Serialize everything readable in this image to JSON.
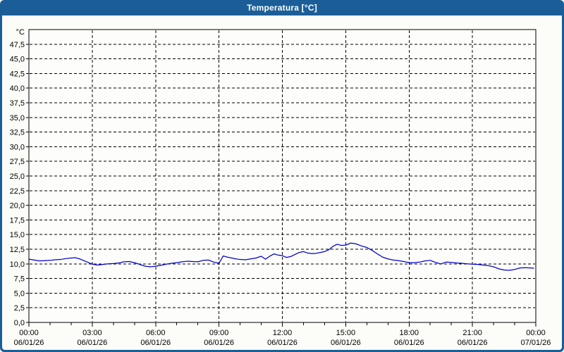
{
  "window": {
    "title": "Temperatura [°C]"
  },
  "colors": {
    "titlebar": "#1B5E97",
    "border": "#1B5E97",
    "content_bg": "#FCFCF8",
    "plot_bg": "#FDFDFB",
    "grid": "#000000",
    "axis": "#000000",
    "text": "#000000",
    "title_text": "#FFFFFF",
    "line": "#0000CC"
  },
  "chart_data": {
    "type": "line",
    "title": "Temperatura [°C]",
    "y_unit": "°C",
    "ylim": [
      0,
      50
    ],
    "xlim_hours": [
      0,
      24
    ],
    "grid": "dashed",
    "legend": "none",
    "y_ticks": [
      {
        "v": 47.5,
        "label": "47,5"
      },
      {
        "v": 45.0,
        "label": "45,0"
      },
      {
        "v": 42.5,
        "label": "42,5"
      },
      {
        "v": 40.0,
        "label": "40,0"
      },
      {
        "v": 37.5,
        "label": "37,5"
      },
      {
        "v": 35.0,
        "label": "35,0"
      },
      {
        "v": 32.5,
        "label": "32,5"
      },
      {
        "v": 30.0,
        "label": "30,0"
      },
      {
        "v": 27.5,
        "label": "27,5"
      },
      {
        "v": 25.0,
        "label": "25,0"
      },
      {
        "v": 22.5,
        "label": "22,5"
      },
      {
        "v": 20.0,
        "label": "20,0"
      },
      {
        "v": 17.5,
        "label": "17,5"
      },
      {
        "v": 15.0,
        "label": "15,0"
      },
      {
        "v": 12.5,
        "label": "12,5"
      },
      {
        "v": 10.0,
        "label": "10,0"
      },
      {
        "v": 7.5,
        "label": "7,5"
      },
      {
        "v": 5.0,
        "label": "5,0"
      },
      {
        "v": 2.5,
        "label": "2,5"
      },
      {
        "v": 0.0,
        "label": "0,0"
      }
    ],
    "x_ticks": [
      {
        "hour": 0,
        "time": "00:00",
        "date": "06/01/26"
      },
      {
        "hour": 3,
        "time": "03:00",
        "date": "06/01/26"
      },
      {
        "hour": 6,
        "time": "06:00",
        "date": "06/01/26"
      },
      {
        "hour": 9,
        "time": "09:00",
        "date": "06/01/26"
      },
      {
        "hour": 12,
        "time": "12:00",
        "date": "06/01/26"
      },
      {
        "hour": 15,
        "time": "15:00",
        "date": "06/01/26"
      },
      {
        "hour": 18,
        "time": "18:00",
        "date": "06/01/26"
      },
      {
        "hour": 21,
        "time": "21:00",
        "date": "06/01/26"
      },
      {
        "hour": 24,
        "time": "00:00",
        "date": "07/01/26"
      }
    ],
    "x_minor_step_hours": 1,
    "series": [
      {
        "name": "Temperatura",
        "color": "#0000CC",
        "points": [
          [
            0,
            10.8
          ],
          [
            0.25,
            10.65
          ],
          [
            0.5,
            10.5
          ],
          [
            0.75,
            10.55
          ],
          [
            1,
            10.6
          ],
          [
            1.25,
            10.7
          ],
          [
            1.5,
            10.75
          ],
          [
            1.75,
            10.9
          ],
          [
            2,
            11.0
          ],
          [
            2.2,
            11.05
          ],
          [
            2.4,
            10.85
          ],
          [
            2.6,
            10.55
          ],
          [
            2.8,
            10.25
          ],
          [
            3,
            9.95
          ],
          [
            3.25,
            9.8
          ],
          [
            3.5,
            9.9
          ],
          [
            3.75,
            10.0
          ],
          [
            4,
            10.05
          ],
          [
            4.25,
            10.15
          ],
          [
            4.5,
            10.35
          ],
          [
            4.75,
            10.4
          ],
          [
            5,
            10.2
          ],
          [
            5.25,
            9.9
          ],
          [
            5.5,
            9.6
          ],
          [
            5.75,
            9.5
          ],
          [
            6,
            9.6
          ],
          [
            6.25,
            9.75
          ],
          [
            6.5,
            9.95
          ],
          [
            6.75,
            10.1
          ],
          [
            7,
            10.2
          ],
          [
            7.25,
            10.35
          ],
          [
            7.5,
            10.45
          ],
          [
            7.75,
            10.4
          ],
          [
            8,
            10.35
          ],
          [
            8.25,
            10.6
          ],
          [
            8.5,
            10.65
          ],
          [
            8.75,
            10.3
          ],
          [
            9,
            10.1
          ],
          [
            9.2,
            11.35
          ],
          [
            9.4,
            11.15
          ],
          [
            9.6,
            11.0
          ],
          [
            9.8,
            10.85
          ],
          [
            10,
            10.75
          ],
          [
            10.25,
            10.7
          ],
          [
            10.5,
            10.85
          ],
          [
            10.75,
            11.0
          ],
          [
            11,
            11.3
          ],
          [
            11.2,
            10.8
          ],
          [
            11.4,
            11.3
          ],
          [
            11.6,
            11.7
          ],
          [
            11.8,
            11.5
          ],
          [
            12,
            11.4
          ],
          [
            12.2,
            11.1
          ],
          [
            12.4,
            11.25
          ],
          [
            12.6,
            11.6
          ],
          [
            12.8,
            11.95
          ],
          [
            13,
            12.1
          ],
          [
            13.2,
            11.85
          ],
          [
            13.4,
            11.75
          ],
          [
            13.6,
            11.8
          ],
          [
            13.8,
            11.95
          ],
          [
            14,
            12.1
          ],
          [
            14.2,
            12.4
          ],
          [
            14.4,
            13.0
          ],
          [
            14.6,
            13.35
          ],
          [
            14.8,
            13.15
          ],
          [
            15,
            13.2
          ],
          [
            15.25,
            13.55
          ],
          [
            15.5,
            13.4
          ],
          [
            15.75,
            13.05
          ],
          [
            16,
            12.8
          ],
          [
            16.25,
            12.3
          ],
          [
            16.5,
            11.7
          ],
          [
            16.75,
            11.15
          ],
          [
            17,
            10.85
          ],
          [
            17.25,
            10.65
          ],
          [
            17.5,
            10.55
          ],
          [
            17.75,
            10.4
          ],
          [
            18,
            10.2
          ],
          [
            18.25,
            10.2
          ],
          [
            18.5,
            10.3
          ],
          [
            18.75,
            10.5
          ],
          [
            19,
            10.6
          ],
          [
            19.25,
            10.25
          ],
          [
            19.5,
            10.0
          ],
          [
            19.75,
            10.3
          ],
          [
            20,
            10.25
          ],
          [
            20.25,
            10.15
          ],
          [
            20.5,
            10.1
          ],
          [
            20.75,
            10.0
          ],
          [
            21,
            9.95
          ],
          [
            21.25,
            9.9
          ],
          [
            21.5,
            9.8
          ],
          [
            21.75,
            9.7
          ],
          [
            22,
            9.5
          ],
          [
            22.25,
            9.15
          ],
          [
            22.5,
            8.95
          ],
          [
            22.75,
            8.9
          ],
          [
            23,
            9.05
          ],
          [
            23.25,
            9.3
          ],
          [
            23.5,
            9.35
          ],
          [
            23.75,
            9.3
          ],
          [
            23.9,
            9.25
          ]
        ]
      }
    ]
  }
}
